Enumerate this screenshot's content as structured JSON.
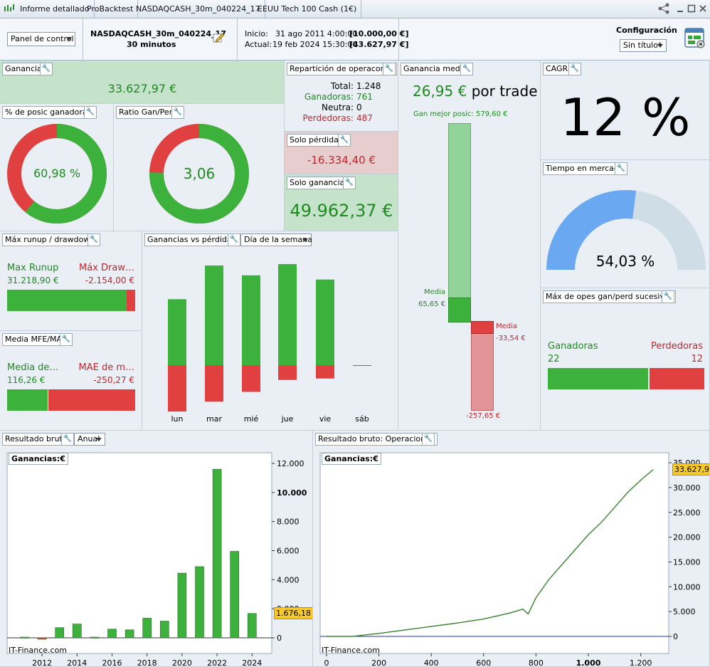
{
  "topbar": {
    "tabs": [
      "Informe detallado",
      "ProBacktest",
      "NASDAQCASH_30m_040224_17",
      "EEUU Tech 100 Cash (1€)"
    ]
  },
  "header": {
    "panel_select": "Panel de control",
    "strategy_name": "NASDAQCASH_30m_040224_17",
    "timeframe": "30 minutos",
    "start_label": "Inicio:",
    "start_date": "31 ago 2011 4:00:00",
    "start_value": "[10.000,00 €]",
    "current_label": "Actual:",
    "current_date": "19 feb 2024 15:30:00",
    "current_value": "[43.627,97 €]",
    "config_label": "Configuración",
    "config_select": "Sin título*"
  },
  "ganancia": {
    "title": "Ganancia",
    "value": "33.627,97 €"
  },
  "pct_ganadoras": {
    "title": "% de posic ganadoras",
    "value": "60,98 %",
    "fraction": 0.6098
  },
  "ratio": {
    "title": "Ratio Gan/Perd",
    "value": "3,06",
    "fraction": 0.7537
  },
  "reparticion": {
    "title": "Repartición de operacones",
    "total_label": "Total:",
    "total": "1.248",
    "win_label": "Ganadoras:",
    "win": "761",
    "neutral_label": "Neutra:",
    "neutral": "0",
    "loss_label": "Perdedoras:",
    "loss": "487"
  },
  "solo_perdidas": {
    "title": "Solo pérdidas",
    "value": "-16.334,40 €"
  },
  "solo_ganancias": {
    "title": "Solo ganancias",
    "value": "49.962,37 €"
  },
  "ganancia_media": {
    "title": "Ganancia media",
    "value": "26,95 €",
    "suffix": "por trade",
    "best_label": "Gan mejor posic: 579,60 €",
    "media_win_label": "Media",
    "media_win_value": "65,65 €",
    "media_loss_label": "Media",
    "media_loss_value": "-33,54 €",
    "worst_value": "-257,65 €"
  },
  "cagr": {
    "title": "CAGR",
    "value": "12 %"
  },
  "tiempo": {
    "title": "Tiempo en mercado",
    "value": "54,03 %",
    "fraction": 0.5403
  },
  "runup": {
    "title": "Máx runup / drawdown",
    "runup_label": "Max Runup",
    "runup_value": "31.218,90 €",
    "dd_label": "Máx Draw…",
    "dd_value": "-2.154,00 €"
  },
  "mfe": {
    "title": "Media MFE/MAE",
    "mfe_label": "Media de…",
    "mfe_value": "116,26 €",
    "mae_label": "MAE de m…",
    "mae_value": "-250,27 €"
  },
  "gvp": {
    "title": "Ganancias vs pérdidas",
    "select": "Día de la semana",
    "days": [
      "lun",
      "mar",
      "mié",
      "jue",
      "vie",
      "sáb"
    ]
  },
  "sucesivas": {
    "title": "Máx de opes gan/perd sucesivas",
    "win_label": "Ganadoras",
    "win_value": "22",
    "loss_label": "Perdedoras",
    "loss_value": "12"
  },
  "bruto": {
    "title": "Resultado bruto",
    "select": "Anual",
    "legend": "Ganancias:€",
    "watermark": "IT-Finance.com",
    "last_value": "1.676,18"
  },
  "bruto_ops": {
    "title": "Resultado bruto: Operaciones",
    "legend": "Ganancias:€",
    "watermark": "IT-Finance.com",
    "last_value": "33.627,97"
  },
  "chart_data": [
    {
      "type": "bar",
      "title": "Ganancias vs pérdidas",
      "categories": [
        "lun",
        "mar",
        "mié",
        "jue",
        "vie",
        "sáb"
      ],
      "series": [
        {
          "name": "Ganancias",
          "values": [
            94,
            142,
            128,
            144,
            122,
            0
          ]
        },
        {
          "name": "Pérdidas",
          "values": [
            -66,
            -52,
            -38,
            -21,
            -19,
            -1
          ]
        }
      ]
    },
    {
      "type": "bar",
      "title": "Resultado bruto",
      "categories": [
        "2011",
        "2012",
        "2013",
        "2014",
        "2015",
        "2016",
        "2017",
        "2018",
        "2019",
        "2020",
        "2021",
        "2022",
        "2023",
        "2024"
      ],
      "values": [
        50,
        -100,
        700,
        950,
        50,
        600,
        550,
        1350,
        1150,
        4450,
        4900,
        11600,
        5950,
        1676.18
      ],
      "ylim": [
        0,
        12000
      ],
      "yticks": [
        "0",
        "2.000",
        "4.000",
        "6.000",
        "8.000",
        "10.000",
        "12.000"
      ],
      "xticks": [
        "2012",
        "2014",
        "2016",
        "2018",
        "2020",
        "2022",
        "2024"
      ]
    },
    {
      "type": "line",
      "title": "Resultado bruto: Operaciones",
      "x": [
        0,
        100,
        200,
        300,
        400,
        500,
        600,
        700,
        750,
        770,
        800,
        850,
        900,
        950,
        1000,
        1050,
        1100,
        1150,
        1200,
        1248
      ],
      "y": [
        0,
        0,
        600,
        1300,
        2000,
        2700,
        3500,
        4700,
        5500,
        4500,
        7800,
        11500,
        14500,
        17500,
        20500,
        23000,
        26000,
        29000,
        31500,
        33627.97
      ],
      "xlim": [
        0,
        1300
      ],
      "ylim": [
        -1000,
        35000
      ],
      "yticks": [
        "0",
        "5.000",
        "10.000",
        "15.000",
        "20.000",
        "25.000",
        "30.000",
        "35.000"
      ],
      "xticks": [
        "0",
        "200",
        "400",
        "600",
        "800",
        "1.000",
        "1.200"
      ]
    }
  ]
}
